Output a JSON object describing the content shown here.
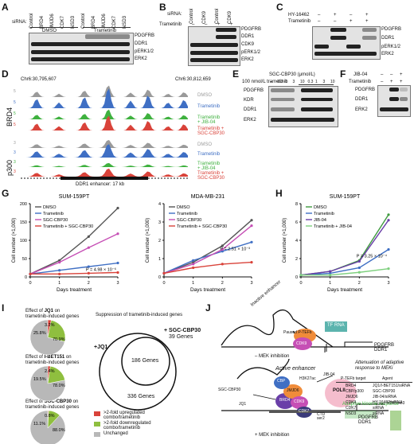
{
  "panels": {
    "A": "A",
    "B": "B",
    "C": "C",
    "D": "D",
    "E": "E",
    "F": "F",
    "G": "G",
    "H": "H",
    "I": "I",
    "J": "J"
  },
  "panel_a": {
    "sirna_label": "siRNA:",
    "lanes": [
      "Control",
      "BRD4",
      "JMJD6",
      "CDK7",
      "NSD3",
      "Control",
      "BRD4",
      "JMJD6",
      "CDK7",
      "NSD3"
    ],
    "groups": [
      "DMSO",
      "Trametinib"
    ],
    "proteins": [
      "PDGFRB",
      "DDR1",
      "pERK1/2",
      "ERK2"
    ]
  },
  "panel_b": {
    "sirna_label": "siRNA:",
    "trametinib_label": "Trametinib",
    "lanes": [
      "Control",
      "CDK9",
      "Control",
      "CDK9"
    ],
    "signs": [
      "–",
      "–",
      "+",
      "+"
    ],
    "proteins": [
      "PDGFRB",
      "DDR1",
      "CDK9",
      "pERK1/2",
      "ERK2"
    ]
  },
  "panel_c": {
    "rows": [
      "HY-16462",
      "Trametinib"
    ],
    "signs_top": [
      "–",
      "+",
      "–",
      "+"
    ],
    "signs_bottom": [
      "–",
      "–",
      "+",
      "+"
    ],
    "proteins": [
      "PDGFRB",
      "DDR1",
      "pERK1/2",
      "ERK2"
    ]
  },
  "panel_d": {
    "coord_left": "Chr6:30,795,607",
    "coord_right": "Chr6:30,812,659",
    "brd4_label": "BRD4",
    "p300_label": "p300",
    "brd4_scale": [
      "5",
      "5",
      "5",
      "5"
    ],
    "p300_scale": [
      "3",
      "3",
      "3",
      "3"
    ],
    "tracks": [
      {
        "name": "DMSO",
        "color": "#9a9a9a"
      },
      {
        "name": "Trametinib",
        "color": "#3f6fc4"
      },
      {
        "name": "Trametinib\n+ JIB-04",
        "color": "#3fb13f"
      },
      {
        "name": "Trametinib +\nSGC-CBP30",
        "color": "#d9433a"
      }
    ],
    "enhancer_label": "DDR1 enhancer: 17 kb"
  },
  "panel_e": {
    "dose_label": "SGC-CBP30 (μmol/L)",
    "tram_label": "100 nmol/L trametinib",
    "doses": [
      "–",
      "0.3",
      "1",
      "3",
      "10",
      "0.3",
      "1",
      "3",
      "10"
    ],
    "proteins": [
      "PDGFRB",
      "KDR",
      "DDR1",
      "ERK2"
    ]
  },
  "panel_f": {
    "rows": [
      "JIB-04",
      "Trametinib"
    ],
    "signs_top": [
      "–",
      "–",
      "+"
    ],
    "signs_bottom": [
      "–",
      "+",
      "+"
    ],
    "proteins": [
      "PDGFRB",
      "DDR1",
      "ERK2"
    ]
  },
  "chart_data": [
    {
      "type": "line",
      "title": "SUM-159PT",
      "xlabel": "Days treatment",
      "ylabel": "Cell number (×1,000)",
      "x": [
        0,
        1,
        2,
        3
      ],
      "xlim": [
        0,
        3
      ],
      "ylim": [
        0,
        200
      ],
      "yticks": [
        0,
        50,
        100,
        150,
        200
      ],
      "series": [
        {
          "name": "DMSO",
          "color": "#555555",
          "values": [
            8,
            45,
            110,
            188
          ]
        },
        {
          "name": "Trametinib",
          "color": "#3f6fc4",
          "values": [
            8,
            18,
            28,
            38
          ]
        },
        {
          "name": "SGC-CBP30",
          "color": "#c64fb5",
          "values": [
            8,
            40,
            80,
            118
          ]
        },
        {
          "name": "Trametinib + SGC-CBP30",
          "color": "#d9433a",
          "values": [
            8,
            8,
            10,
            12
          ]
        }
      ],
      "annotation": "P = 4.98 × 10⁻⁶"
    },
    {
      "type": "line",
      "title": "MDA-MB-231",
      "xlabel": "Days treatment",
      "ylabel": "Cell number (×1,000)",
      "x": [
        0,
        1,
        2,
        3
      ],
      "xlim": [
        0,
        3
      ],
      "ylim": [
        0,
        4
      ],
      "yticks": [
        0,
        1,
        2,
        3,
        4
      ],
      "series": [
        {
          "name": "DMSO",
          "color": "#555555",
          "values": [
            0.2,
            0.8,
            1.7,
            3.1
          ]
        },
        {
          "name": "Trametinib",
          "color": "#3f6fc4",
          "values": [
            0.2,
            0.9,
            1.4,
            1.9
          ]
        },
        {
          "name": "SGC-CBP30",
          "color": "#c64fb5",
          "values": [
            0.2,
            0.7,
            1.5,
            2.8
          ]
        },
        {
          "name": "Trametinib + SGC-CBP30",
          "color": "#d9433a",
          "values": [
            0.2,
            0.5,
            0.7,
            0.8
          ]
        }
      ],
      "annotation": "P = 2.51 × 10⁻³"
    },
    {
      "type": "line",
      "title": "SUM-159PT",
      "xlabel": "Days treatment",
      "ylabel": "Cell number (×1,000)",
      "x": [
        0,
        1,
        2,
        3
      ],
      "xlim": [
        0,
        3
      ],
      "ylim": [
        0,
        8
      ],
      "yticks": [
        0,
        2,
        4,
        6,
        8
      ],
      "series": [
        {
          "name": "DMSO",
          "color": "#3f9a3f",
          "values": [
            0.2,
            0.6,
            1.8,
            6.8
          ]
        },
        {
          "name": "Trametinib",
          "color": "#3f6fc4",
          "values": [
            0.2,
            0.4,
            1.0,
            3.0
          ]
        },
        {
          "name": "JIB-04",
          "color": "#6a3fa8",
          "values": [
            0.2,
            0.6,
            1.7,
            6.2
          ]
        },
        {
          "name": "Trametinib + JIB-04",
          "color": "#7ed07e",
          "values": [
            0.2,
            0.2,
            0.5,
            0.9
          ]
        }
      ],
      "annotation": "P = 3.25 × 10⁻⁴"
    },
    {
      "type": "pie",
      "title": "Effect of JQ1 on trametinib-induced genes",
      "labels": [
        "3.2%",
        "25.8%",
        "70.9%"
      ],
      "values": [
        3.2,
        25.8,
        70.9
      ]
    },
    {
      "type": "pie",
      "title": "Effect of I-BET151 on trametinib-induced genes",
      "labels": [
        "2.4%",
        "19.5%",
        "78.0%"
      ],
      "values": [
        2.4,
        19.5,
        78.0
      ]
    },
    {
      "type": "pie",
      "title": "Effect of SGC-CBP30 on trametinib-induced genes",
      "labels": [
        "0.8%",
        "11.1%",
        "88.0%"
      ],
      "values": [
        0.8,
        11.1,
        88.0
      ]
    }
  ],
  "panel_i": {
    "pie_titles": [
      [
        "Effect of ",
        "JQ1",
        " on",
        "trametinib-induced genes"
      ],
      [
        "Effect of ",
        "I-BET151",
        " on",
        "trametinib-induced genes"
      ],
      [
        "Effect of ",
        "SGC-CBP30",
        " on",
        "trametinib-induced genes"
      ]
    ],
    "pie_colors": {
      "up": "#d9433a",
      "down": "#8fbf3f",
      "unchanged": "#b8b8b8"
    },
    "venn_title": "Suppression of trametinib-induced genes",
    "venn_left": "+JQ1",
    "venn_right": "+ SGC-CBP30",
    "venn_right_count": "39 Genes",
    "venn_center": "186 Genes",
    "venn_left_count": "336 Genes",
    "legend": [
      ">2-fold upregulated combo/trametinib",
      ">2-fold downregulated combo/trametinib",
      "Unchanged"
    ]
  },
  "panel_j": {
    "inactive": "Inactive enhancer",
    "tf_rna": "TF RNA",
    "paused": "Paused P-TEFb",
    "cdk9": "CDK9",
    "cyclin": "CycT1",
    "minus_mek": "– MEK inhibition",
    "gene_top": "PDGFRB\nDDR1",
    "active": "Active enhancer",
    "sgc": "SGC-CBP30",
    "jib": "JIB-04",
    "jq1": "JQ1",
    "h3k27ac": "H3K27ac",
    "h3k9me3": "H3K9me3",
    "polii": "POLII",
    "adaptive": "Adaptive kinome response",
    "gene_bottom": "PDGFRB\nDDR1",
    "plus_mek": "+ MEK inhibition",
    "cdc": "CTD\nser2",
    "protein_labels": [
      "CBP",
      "BRD4",
      "JMJD6",
      "CDK9",
      "CDK7"
    ],
    "table_title": "Attenuation of adaptive response to MEKi",
    "table_headers": [
      "P-TEFb target",
      "Agent"
    ],
    "table_rows": [
      [
        "BRD4",
        "JQ1/I-BET151/siRNA"
      ],
      [
        "CBP/p300",
        "SGC-CBP30"
      ],
      [
        "JMJD6",
        "JIB-04/siRNA"
      ],
      [
        "CDK9",
        "HY-16462/siRNA"
      ],
      [
        "CDK7",
        "siRNA"
      ],
      [
        "NSD3",
        "siRNA"
      ]
    ]
  }
}
